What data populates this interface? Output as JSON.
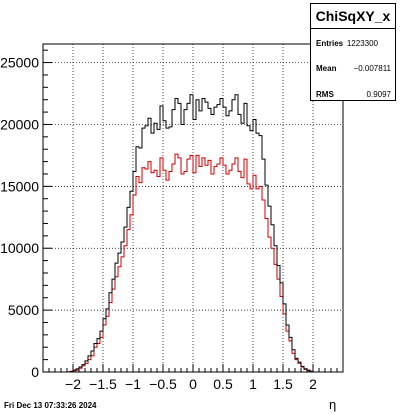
{
  "stats_box": {
    "title": "ChiSqXY_x",
    "rows": [
      {
        "label": "Entries",
        "value": "1223300"
      },
      {
        "label": "Mean",
        "value": "−0.007811"
      },
      {
        "label": "RMS",
        "value": "0.9097"
      }
    ]
  },
  "footer_timestamp": "Fri Dec 13 07:33:26 2024",
  "colors": {
    "black_series": "#000000",
    "red_series": "#cc0000",
    "grid": "#000000"
  },
  "chart_data": {
    "type": "histogram",
    "title": "ChiSqXY_x",
    "xlabel": "η",
    "ylabel": "",
    "xlim": [
      -2.5,
      2.5
    ],
    "ylim": [
      0,
      26500
    ],
    "xticks": [
      -2,
      -1.5,
      -1,
      -0.5,
      0,
      0.5,
      1,
      1.5,
      2
    ],
    "xtick_labels": [
      "−2",
      "−1.5",
      "−1",
      "−0.5",
      "0",
      "0.5",
      "1",
      "1.5",
      "2"
    ],
    "yticks": [
      0,
      5000,
      10000,
      15000,
      20000,
      25000
    ],
    "ytick_labels": [
      "0",
      "5000",
      "10000",
      "15000",
      "20000",
      "25000"
    ],
    "grid": true,
    "bin_edges_start": -2.5,
    "bin_width": 0.05,
    "series": [
      {
        "values": [
          0,
          0,
          0,
          0,
          0,
          0,
          0,
          0,
          0,
          50,
          100,
          150,
          300,
          500,
          700,
          1000,
          1300,
          2000,
          2300,
          2800,
          3800,
          4500,
          5600,
          6700,
          7700,
          8500,
          9300,
          10200,
          11500,
          12700,
          14300,
          15800,
          15300,
          16500,
          16400,
          17000,
          16100,
          16300,
          15800,
          17300,
          16300,
          15500,
          16200,
          16800,
          17600,
          17300,
          16000,
          16200,
          17200,
          17500,
          16100,
          17500,
          16600,
          17300,
          16700,
          17100,
          16000,
          16600,
          16800,
          17300,
          16700,
          16000,
          16300,
          16800,
          17300,
          16200,
          15700,
          17200,
          15200,
          14800,
          15900,
          14800,
          15000,
          13900,
          12400,
          10900,
          10000,
          8700,
          7500,
          6100,
          4700,
          3300,
          2500,
          1500,
          1000,
          700,
          400,
          200,
          100,
          50,
          0,
          0,
          0,
          0,
          0,
          0,
          0,
          0,
          0,
          0
        ]
      },
      {
        "values": [
          0,
          0,
          0,
          0,
          0,
          0,
          0,
          0,
          0,
          50,
          150,
          250,
          400,
          600,
          900,
          1300,
          1700,
          2300,
          2700,
          3300,
          4300,
          5100,
          6400,
          7500,
          8800,
          9600,
          10500,
          11700,
          13300,
          14600,
          16200,
          18200,
          18100,
          19700,
          19900,
          20500,
          19300,
          20100,
          19600,
          21500,
          20300,
          19700,
          19800,
          21200,
          22100,
          21700,
          20000,
          21200,
          21700,
          22400,
          20400,
          22000,
          21100,
          22100,
          21800,
          21300,
          20800,
          21400,
          21600,
          22100,
          21400,
          20700,
          21100,
          22000,
          22400,
          20800,
          20100,
          21700,
          19900,
          19500,
          20400,
          19300,
          19100,
          17200,
          15100,
          13400,
          11900,
          10200,
          8600,
          7200,
          5500,
          3800,
          2800,
          1800,
          1100,
          800,
          450,
          250,
          150,
          60,
          0,
          0,
          0,
          0,
          0,
          0,
          0,
          0,
          0,
          0
        ]
      }
    ]
  }
}
